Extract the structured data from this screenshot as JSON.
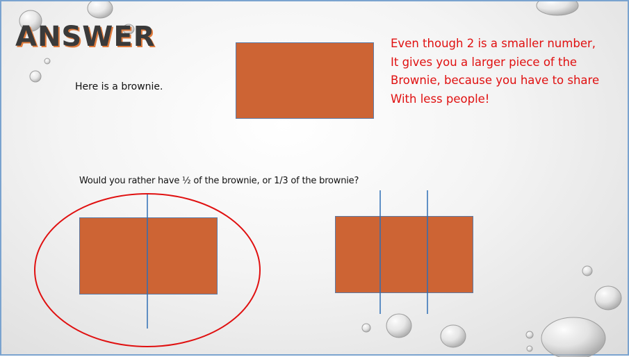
{
  "slide": {
    "title": "ANSWER",
    "intro_text": "Here is a brownie.",
    "question_text": "Would you rather have ½ of the brownie, or 1/3 of the brownie?",
    "explanation_lines": [
      "Even though 2 is a smaller number,",
      "It gives you a larger piece of the",
      "Brownie, because you have to share",
      "With less people!"
    ]
  },
  "colors": {
    "brownie": "#cd6434",
    "divider_line": "#2f6fb5",
    "circle": "#e01010",
    "explanation_text": "#e01010",
    "slide_border": "#7aa3cf"
  }
}
